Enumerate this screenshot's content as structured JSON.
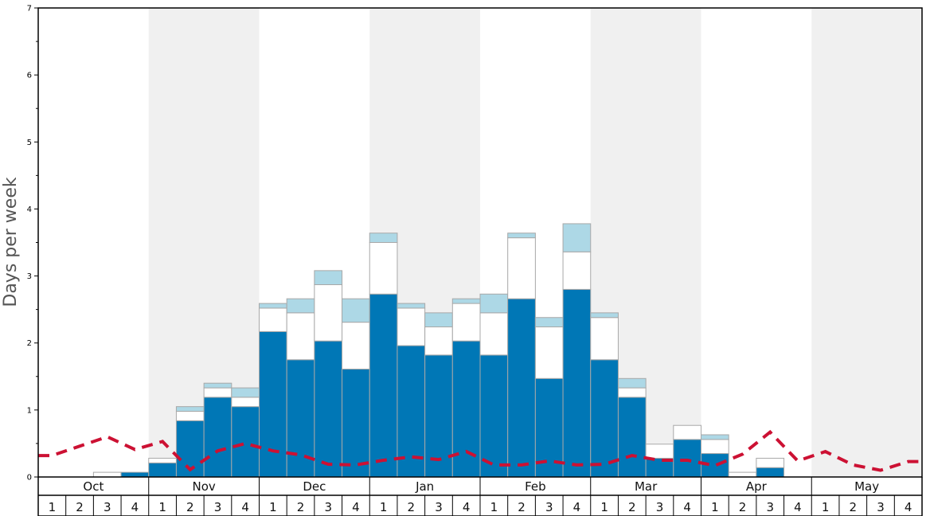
{
  "chart_data": {
    "type": "bar",
    "ylabel": "Days per week",
    "ylim": [
      0,
      7
    ],
    "yticks": [
      "0",
      "1",
      "2",
      "3",
      "4",
      "5",
      "6",
      "7"
    ],
    "months": [
      "Oct",
      "Nov",
      "Dec",
      "Jan",
      "Feb",
      "Mar",
      "Apr",
      "May"
    ],
    "week_labels": [
      "1",
      "2",
      "3",
      "4"
    ],
    "grid": false,
    "alternating_month_shading": true,
    "colors": {
      "base": "#0077b6",
      "middle": "#ffffff",
      "top": "#add8e6",
      "bar_border": "#a8a8a8",
      "line": "#cc1133",
      "shade": "#f0f0f0"
    },
    "series": [
      {
        "values": [
          0,
          0,
          0,
          0.07,
          0.21,
          0.84,
          1.19,
          1.05,
          2.17,
          1.75,
          2.03,
          1.61,
          2.73,
          1.96,
          1.82,
          2.03,
          1.82,
          2.66,
          1.47,
          2.8,
          1.75,
          1.19,
          0.28,
          0.56,
          0.35,
          0,
          0.14,
          0,
          0,
          0,
          0,
          0
        ]
      },
      {
        "values": [
          0,
          0,
          0.07,
          0,
          0.07,
          0.14,
          0.14,
          0.14,
          0.35,
          0.7,
          0.84,
          0.7,
          0.77,
          0.56,
          0.42,
          0.56,
          0.63,
          0.91,
          0.77,
          0.56,
          0.63,
          0.14,
          0.21,
          0.21,
          0.21,
          0.07,
          0.14,
          0,
          0,
          0,
          0,
          0
        ]
      },
      {
        "values": [
          0,
          0,
          0,
          0,
          0,
          0.07,
          0.07,
          0.14,
          0.07,
          0.21,
          0.21,
          0.35,
          0.14,
          0.07,
          0.21,
          0.07,
          0.28,
          0.07,
          0.14,
          0.42,
          0.07,
          0.14,
          0,
          0,
          0.07,
          0,
          0,
          0,
          0,
          0,
          0,
          0
        ]
      },
      {
        "type": "line",
        "style": "dashed",
        "values": [
          0.32,
          0.46,
          0.6,
          0.41,
          0.53,
          0.11,
          0.39,
          0.5,
          0.39,
          0.33,
          0.19,
          0.18,
          0.25,
          0.3,
          0.26,
          0.38,
          0.18,
          0.18,
          0.24,
          0.18,
          0.19,
          0.32,
          0.25,
          0.25,
          0.17,
          0.34,
          0.67,
          0.24,
          0.38,
          0.18,
          0.1,
          0.23
        ]
      }
    ]
  }
}
